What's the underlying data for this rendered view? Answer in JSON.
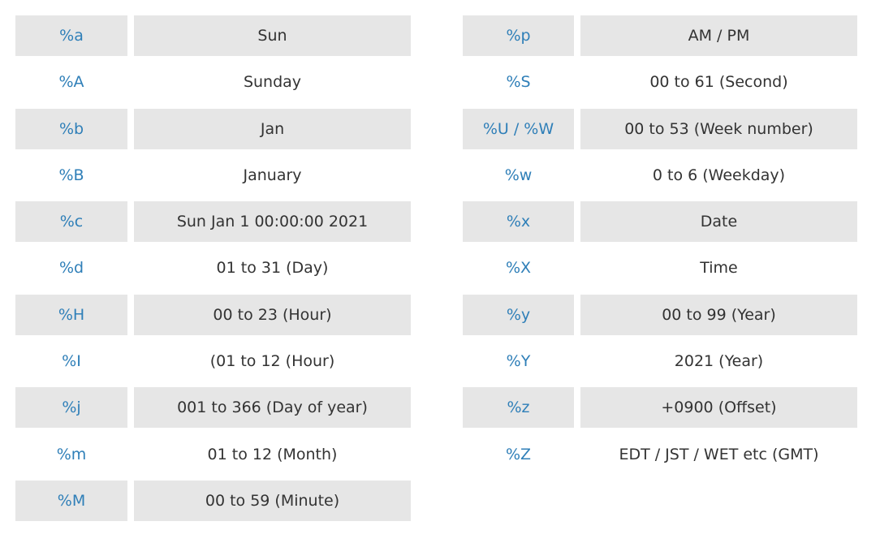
{
  "colors": {
    "code_text": "#2f7fb8",
    "description_text": "#333333",
    "shaded_row": "#e6e6e6",
    "background": "#ffffff"
  },
  "tables": {
    "left": [
      {
        "code": "%a",
        "description": "Sun"
      },
      {
        "code": "%A",
        "description": "Sunday"
      },
      {
        "code": "%b",
        "description": "Jan"
      },
      {
        "code": "%B",
        "description": "January"
      },
      {
        "code": "%c",
        "description": "Sun Jan 1 00:00:00 2021"
      },
      {
        "code": "%d",
        "description": "01 to 31 (Day)"
      },
      {
        "code": "%H",
        "description": "00 to 23 (Hour)"
      },
      {
        "code": "%I",
        "description": "(01 to 12 (Hour)"
      },
      {
        "code": "%j",
        "description": "001 to 366 (Day of year)"
      },
      {
        "code": "%m",
        "description": "01 to 12 (Month)"
      },
      {
        "code": "%M",
        "description": "00 to 59 (Minute)"
      }
    ],
    "right": [
      {
        "code": "%p",
        "description": "AM / PM"
      },
      {
        "code": "%S",
        "description": "00 to 61 (Second)"
      },
      {
        "code": "%U / %W",
        "description": "00 to 53 (Week number)"
      },
      {
        "code": "%w",
        "description": "0 to 6 (Weekday)"
      },
      {
        "code": "%x",
        "description": "Date"
      },
      {
        "code": "%X",
        "description": "Time"
      },
      {
        "code": "%y",
        "description": "00 to 99 (Year)"
      },
      {
        "code": "%Y",
        "description": "2021 (Year)"
      },
      {
        "code": "%z",
        "description": "+0900 (Offset)"
      },
      {
        "code": "%Z",
        "description": "EDT / JST / WET etc  (GMT)"
      }
    ]
  }
}
